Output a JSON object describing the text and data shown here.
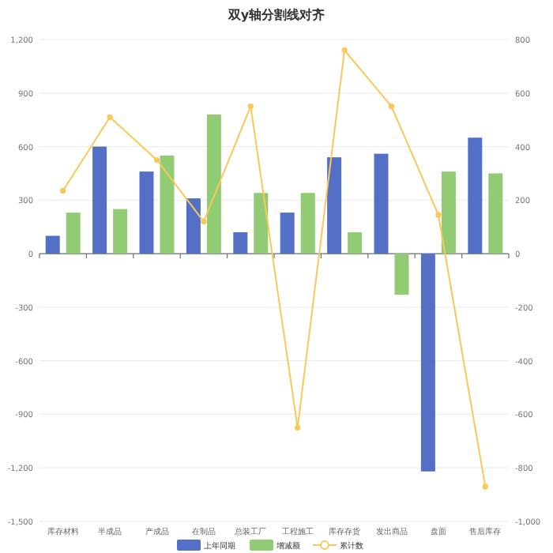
{
  "chart_data": {
    "type": "bar",
    "title": "双y轴分割线对齐",
    "categories": [
      "库存材料",
      "半成品",
      "产成品",
      "在制品",
      "总装工厂",
      "工程施工",
      "库存存货",
      "发出商品",
      "盘面",
      "售后库存"
    ],
    "series": [
      {
        "name": "上年同期",
        "color": "#5470c6",
        "values": [
          100,
          600,
          460,
          310,
          120,
          230,
          540,
          560,
          -1220,
          650
        ]
      },
      {
        "name": "增减额",
        "color": "#91cc75",
        "values": [
          230,
          250,
          550,
          780,
          340,
          340,
          120,
          -230,
          460,
          450
        ]
      },
      {
        "name": "累计数",
        "type": "line",
        "axis": "y2",
        "color": "#fac858",
        "marker": "circle",
        "values": [
          235,
          510,
          350,
          120,
          550,
          -650,
          760,
          550,
          145,
          -870
        ]
      }
    ],
    "ylim": [
      -1500,
      1200
    ],
    "yticks": [
      {
        "value": -1500,
        "label": "-1,500"
      },
      {
        "value": -1200,
        "label": "-1,200"
      },
      {
        "value": -900,
        "label": "-900"
      },
      {
        "value": -600,
        "label": "-600"
      },
      {
        "value": -300,
        "label": "-300"
      },
      0,
      300,
      600,
      900,
      {
        "value": 1200,
        "label": "1,200"
      }
    ],
    "y2lim": [
      -1000,
      800
    ],
    "y2ticks": [
      {
        "value": -1000,
        "label": "-1,000"
      },
      {
        "value": -800,
        "label": "-800"
      },
      {
        "value": -600,
        "label": "-600"
      },
      {
        "value": -400,
        "label": "-400"
      },
      {
        "value": -200,
        "label": "-200"
      },
      0,
      200,
      400,
      600,
      800
    ],
    "grid": "y",
    "legend": "bottom"
  }
}
